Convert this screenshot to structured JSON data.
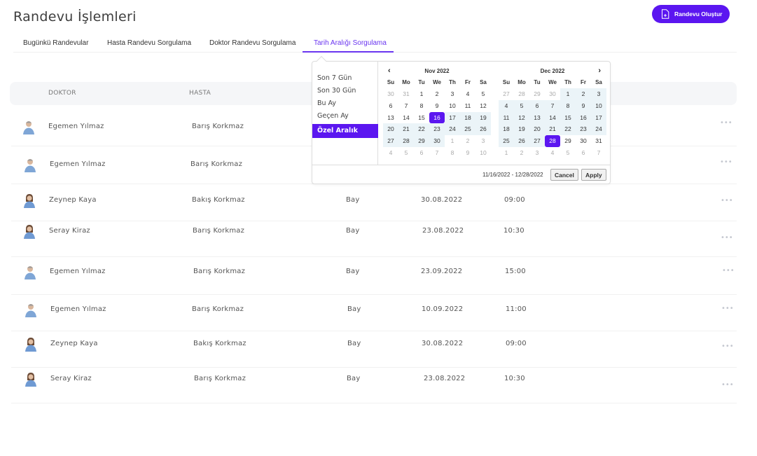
{
  "header": {
    "title": "Randevu İşlemleri",
    "create_button": "Randevu Oluştur",
    "create_icon": "document-plus-icon"
  },
  "tabs": [
    {
      "label": "Bugünkü Randevular",
      "active": false
    },
    {
      "label": "Hasta Randevu Sorgulama",
      "active": false
    },
    {
      "label": "Doktor Randevu Sorgulama",
      "active": false
    },
    {
      "label": "Tarih Aralığı Sorgulama",
      "active": true
    }
  ],
  "table": {
    "columns": [
      "DOKTOR",
      "HASTA"
    ],
    "rows": [
      {
        "doctor": "Egemen Yılmaz",
        "patient": "Barış Korkmaz",
        "gender": "",
        "date": "",
        "time": "",
        "avatar": "male-doctor-avatar"
      },
      {
        "doctor": "Egemen Yılmaz",
        "patient": "Barış Korkmaz",
        "gender": "",
        "date": "",
        "time": "",
        "avatar": "male-doctor-avatar"
      },
      {
        "doctor": "Zeynep Kaya",
        "patient": "Bakış Korkmaz",
        "gender": "Bay",
        "date": "30.08.2022",
        "time": "09:00",
        "avatar": "female-doctor-avatar"
      },
      {
        "doctor": "Seray Kiraz",
        "patient": "Barış Korkmaz",
        "gender": "Bay",
        "date": "23.08.2022",
        "time": "10:30",
        "avatar": "female-doctor-avatar"
      },
      {
        "doctor": "Egemen Yılmaz",
        "patient": "Barış Korkmaz",
        "gender": "Bay",
        "date": "23.09.2022",
        "time": "15:00",
        "avatar": "male-doctor-avatar"
      },
      {
        "doctor": "Egemen Yılmaz",
        "patient": "Barış Korkmaz",
        "gender": "Bay",
        "date": "10.09.2022",
        "time": "11:00",
        "avatar": "male-doctor-avatar"
      },
      {
        "doctor": "Zeynep Kaya",
        "patient": "Bakış Korkmaz",
        "gender": "Bay",
        "date": "30.08.2022",
        "time": "09:00",
        "avatar": "female-doctor-avatar"
      },
      {
        "doctor": "Seray Kiraz",
        "patient": "Barış Korkmaz",
        "gender": "Bay",
        "date": "23.08.2022",
        "time": "10:30",
        "avatar": "female-doctor-avatar"
      }
    ],
    "more_label": "•••"
  },
  "datepicker": {
    "ranges": [
      "Son 7 Gün",
      "Son 30 Gün",
      "Bu Ay",
      "Geçen Ay",
      "Özel Aralık"
    ],
    "active_range": "Özel Aralık",
    "weekdays": [
      "Su",
      "Mo",
      "Tu",
      "We",
      "Th",
      "Fr",
      "Sa"
    ],
    "left_month": {
      "title": "Nov 2022",
      "days": [
        [
          "30",
          "31",
          "1",
          "2",
          "3",
          "4",
          "5"
        ],
        [
          "6",
          "7",
          "8",
          "9",
          "10",
          "11",
          "12"
        ],
        [
          "13",
          "14",
          "15",
          "16",
          "17",
          "18",
          "19"
        ],
        [
          "20",
          "21",
          "22",
          "23",
          "24",
          "25",
          "26"
        ],
        [
          "27",
          "28",
          "29",
          "30",
          "1",
          "2",
          "3"
        ],
        [
          "4",
          "5",
          "6",
          "7",
          "8",
          "9",
          "10"
        ]
      ]
    },
    "right_month": {
      "title": "Dec 2022",
      "days": [
        [
          "27",
          "28",
          "29",
          "30",
          "1",
          "2",
          "3"
        ],
        [
          "4",
          "5",
          "6",
          "7",
          "8",
          "9",
          "10"
        ],
        [
          "11",
          "12",
          "13",
          "14",
          "15",
          "16",
          "17"
        ],
        [
          "18",
          "19",
          "20",
          "21",
          "22",
          "23",
          "24"
        ],
        [
          "25",
          "26",
          "27",
          "28",
          "29",
          "30",
          "31"
        ],
        [
          "1",
          "2",
          "3",
          "4",
          "5",
          "6",
          "7"
        ]
      ]
    },
    "prev_icon": "‹",
    "next_icon": "›",
    "selected_range_text": "11/16/2022 - 12/28/2022",
    "cancel_label": "Cancel",
    "apply_label": "Apply"
  },
  "colors": {
    "accent": "#5b16f0",
    "tab_active": "#6a35f0",
    "range_bg": "#ebf4f8",
    "table_head_bg": "#f5f6f8"
  }
}
